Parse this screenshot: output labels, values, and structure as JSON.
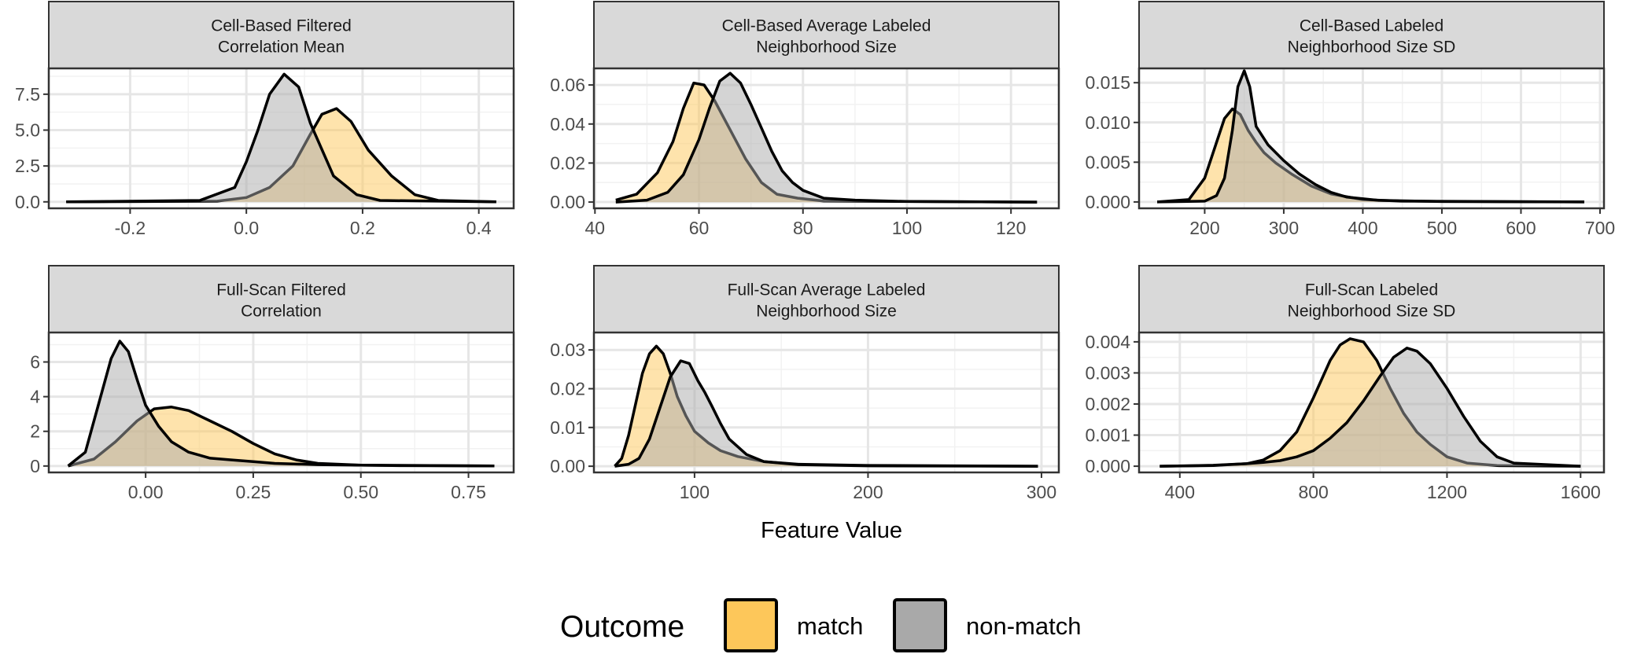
{
  "chart_data": {
    "type": "area",
    "xlabel": "Feature Value",
    "legend": {
      "title": "Outcome",
      "position": "bottom",
      "entries": [
        {
          "name": "match",
          "color": "#FDC75A"
        },
        {
          "name": "non-match",
          "color": "#A9A9A9"
        }
      ]
    },
    "colors": {
      "match": "#FDC75A",
      "non_match": "#A9A9A9",
      "strip_fill": "#D9D9D9",
      "outline": "#000000"
    },
    "grid": true,
    "panels": [
      {
        "title": [
          "Cell-Based Filtered",
          "Correlation Mean"
        ],
        "xlim": [
          -0.34,
          0.46
        ],
        "ylim": [
          -0.45,
          9.3
        ],
        "xticks": [
          -0.2,
          0.0,
          0.2,
          0.4
        ],
        "xtick_labels": [
          "-0.2",
          "0.0",
          "0.2",
          "0.4"
        ],
        "yticks": [
          0,
          2.5,
          5,
          7.5
        ],
        "ytick_labels": [
          "0.0",
          "2.5",
          "5.0",
          "7.5"
        ],
        "series": [
          {
            "name": "match",
            "x": [
              -0.31,
              -0.05,
              0.0,
              0.04,
              0.08,
              0.11,
              0.13,
              0.155,
              0.18,
              0.21,
              0.25,
              0.29,
              0.33,
              0.43
            ],
            "y": [
              0,
              0.05,
              0.3,
              1.0,
              2.5,
              4.7,
              6.1,
              6.5,
              5.6,
              3.6,
              1.8,
              0.5,
              0.1,
              0
            ]
          },
          {
            "name": "non-match",
            "x": [
              -0.31,
              -0.08,
              -0.02,
              0.0,
              0.02,
              0.04,
              0.065,
              0.09,
              0.11,
              0.15,
              0.19,
              0.23,
              0.43
            ],
            "y": [
              0,
              0.1,
              1.0,
              2.8,
              5.0,
              7.5,
              8.9,
              8.0,
              5.5,
              1.8,
              0.5,
              0.1,
              0
            ]
          }
        ]
      },
      {
        "title": [
          "Cell-Based Average Labeled",
          "Neighborhood Size"
        ],
        "xlim": [
          39.8,
          129.2
        ],
        "ylim": [
          -0.0032,
          0.0685
        ],
        "xticks": [
          40,
          60,
          80,
          100,
          120
        ],
        "xtick_labels": [
          "40",
          "60",
          "80",
          "100",
          "120"
        ],
        "yticks": [
          0,
          0.02,
          0.04,
          0.06
        ],
        "ytick_labels": [
          "0.00",
          "0.02",
          "0.04",
          "0.06"
        ],
        "series": [
          {
            "name": "match",
            "x": [
              44,
              48,
              52,
              55,
              57,
              59,
              61,
              63,
              66,
              69,
              72,
              75,
              79,
              84,
              125
            ],
            "y": [
              0.001,
              0.004,
              0.015,
              0.031,
              0.048,
              0.061,
              0.06,
              0.052,
              0.037,
              0.022,
              0.01,
              0.004,
              0.002,
              0.0005,
              0
            ]
          },
          {
            "name": "non-match",
            "x": [
              44,
              50,
              54,
              57,
              60,
              62,
              64,
              66,
              68,
              70,
              72,
              74,
              76,
              78,
              80,
              84,
              90,
              100,
              125
            ],
            "y": [
              0,
              0.001,
              0.005,
              0.014,
              0.032,
              0.048,
              0.062,
              0.066,
              0.061,
              0.05,
              0.038,
              0.026,
              0.016,
              0.01,
              0.006,
              0.002,
              0.001,
              0.0003,
              0
            ]
          }
        ]
      },
      {
        "title": [
          "Cell-Based Labeled",
          "Neighborhood Size SD"
        ],
        "xlim": [
          117,
          705
        ],
        "ylim": [
          -0.0008,
          0.0168
        ],
        "xticks": [
          200,
          300,
          400,
          500,
          600,
          700
        ],
        "xtick_labels": [
          "200",
          "300",
          "400",
          "500",
          "600",
          "700"
        ],
        "yticks": [
          0,
          0.005,
          0.01,
          0.015
        ],
        "ytick_labels": [
          "0.000",
          "0.005",
          "0.010",
          "0.015"
        ],
        "series": [
          {
            "name": "match",
            "x": [
              140,
              180,
              200,
              215,
              225,
              235,
              245,
              255,
              265,
              275,
              290,
              310,
              335,
              360,
              400,
              450,
              680
            ],
            "y": [
              0,
              0.0003,
              0.003,
              0.0075,
              0.0105,
              0.0117,
              0.011,
              0.009,
              0.0075,
              0.0062,
              0.0049,
              0.0035,
              0.002,
              0.001,
              0.0003,
              0.0001,
              0
            ]
          },
          {
            "name": "non-match",
            "x": [
              140,
              200,
              215,
              225,
              235,
              242,
              250,
              257,
              265,
              280,
              300,
              320,
              340,
              360,
              380,
              420,
              500,
              680
            ],
            "y": [
              0,
              0.0001,
              0.0008,
              0.003,
              0.009,
              0.0145,
              0.0165,
              0.0145,
              0.0095,
              0.0072,
              0.0052,
              0.0035,
              0.0022,
              0.0012,
              0.0006,
              0.0002,
              5e-05,
              0
            ]
          }
        ]
      },
      {
        "title": [
          "Full-Scan Filtered",
          "Correlation"
        ],
        "xlim": [
          -0.225,
          0.855
        ],
        "ylim": [
          -0.37,
          7.7
        ],
        "xticks": [
          0.0,
          0.25,
          0.5,
          0.75
        ],
        "xtick_labels": [
          "0.00",
          "0.25",
          "0.50",
          "0.75"
        ],
        "yticks": [
          0,
          2,
          4,
          6
        ],
        "ytick_labels": [
          "0",
          "2",
          "4",
          "6"
        ],
        "series": [
          {
            "name": "match",
            "x": [
              -0.18,
              -0.12,
              -0.07,
              -0.02,
              0.02,
              0.06,
              0.1,
              0.15,
              0.2,
              0.25,
              0.3,
              0.35,
              0.4,
              0.5,
              0.6,
              0.81
            ],
            "y": [
              0,
              0.4,
              1.4,
              2.6,
              3.3,
              3.4,
              3.2,
              2.6,
              2.0,
              1.3,
              0.7,
              0.35,
              0.15,
              0.05,
              0.02,
              0
            ]
          },
          {
            "name": "non-match",
            "x": [
              -0.18,
              -0.14,
              -0.11,
              -0.08,
              -0.06,
              -0.04,
              -0.02,
              0.0,
              0.03,
              0.06,
              0.1,
              0.15,
              0.2,
              0.25,
              0.3,
              0.4,
              0.5,
              0.81
            ],
            "y": [
              0,
              0.8,
              3.5,
              6.2,
              7.2,
              6.6,
              5.0,
              3.5,
              2.3,
              1.4,
              0.8,
              0.45,
              0.35,
              0.25,
              0.15,
              0.08,
              0.05,
              0
            ]
          }
        ]
      },
      {
        "title": [
          "Full-Scan Average Labeled",
          "Neighborhood Size"
        ],
        "xlim": [
          42,
          310
        ],
        "ylim": [
          -0.0016,
          0.0345
        ],
        "xticks": [
          100,
          200,
          300
        ],
        "xtick_labels": [
          "100",
          "200",
          "300"
        ],
        "yticks": [
          0,
          0.01,
          0.02,
          0.03
        ],
        "ytick_labels": [
          "0.00",
          "0.01",
          "0.02",
          "0.03"
        ],
        "series": [
          {
            "name": "match",
            "x": [
              54,
              58,
              62,
              66,
              70,
              74,
              78,
              82,
              86,
              90,
              95,
              100,
              108,
              115,
              125,
              140,
              160,
              200,
              298
            ],
            "y": [
              0,
              0.002,
              0.008,
              0.016,
              0.024,
              0.029,
              0.031,
              0.029,
              0.024,
              0.018,
              0.013,
              0.009,
              0.006,
              0.004,
              0.0025,
              0.0012,
              0.0005,
              0.0002,
              0
            ]
          },
          {
            "name": "non-match",
            "x": [
              54,
              62,
              68,
              74,
              80,
              86,
              92,
              97,
              102,
              106,
              110,
              115,
              120,
              130,
              140,
              160,
              200,
              298
            ],
            "y": [
              0,
              0.0005,
              0.002,
              0.007,
              0.015,
              0.023,
              0.0272,
              0.0265,
              0.022,
              0.019,
              0.0155,
              0.011,
              0.007,
              0.003,
              0.0012,
              0.0004,
              0.0001,
              0
            ]
          }
        ]
      },
      {
        "title": [
          "Full-Scan Labeled",
          "Neighborhood Size SD"
        ],
        "xlim": [
          278,
          1670
        ],
        "ylim": [
          -0.0002,
          0.0043
        ],
        "xticks": [
          400,
          800,
          1200,
          1600
        ],
        "xtick_labels": [
          "400",
          "800",
          "1200",
          "1600"
        ],
        "yticks": [
          0,
          0.001,
          0.002,
          0.003,
          0.004
        ],
        "ytick_labels": [
          "0.000",
          "0.001",
          "0.002",
          "0.003",
          "0.004"
        ],
        "series": [
          {
            "name": "match",
            "x": [
              340,
              500,
              600,
              650,
              700,
              750,
              800,
              850,
              880,
              910,
              950,
              990,
              1030,
              1070,
              1110,
              1150,
              1200,
              1260,
              1350,
              1600
            ],
            "y": [
              0,
              2e-05,
              8e-05,
              0.0002,
              0.0005,
              0.0011,
              0.0022,
              0.0034,
              0.0039,
              0.0041,
              0.004,
              0.0034,
              0.0025,
              0.0017,
              0.0011,
              0.0007,
              0.0003,
              0.0001,
              2e-05,
              0
            ]
          },
          {
            "name": "non-match",
            "x": [
              340,
              500,
              600,
              650,
              700,
              750,
              800,
              850,
              900,
              950,
              1000,
              1040,
              1080,
              1110,
              1150,
              1200,
              1250,
              1300,
              1350,
              1400,
              1600
            ],
            "y": [
              0,
              3e-05,
              8e-05,
              0.00012,
              0.00018,
              0.0003,
              0.0005,
              0.0009,
              0.0014,
              0.0021,
              0.0029,
              0.0035,
              0.0038,
              0.0037,
              0.0033,
              0.0025,
              0.0016,
              0.0008,
              0.0003,
              0.0001,
              0
            ]
          }
        ]
      }
    ]
  }
}
